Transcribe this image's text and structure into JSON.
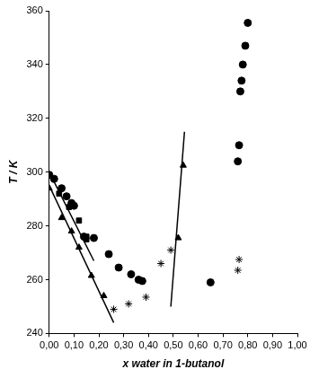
{
  "chart_data": {
    "type": "scatter",
    "x_label": "x water in 1-butanol",
    "y_label": "T / K",
    "xlim": [
      0,
      1
    ],
    "xticks": [
      {
        "value": 0,
        "label": "0,00"
      },
      {
        "value": 0.1,
        "label": "0,10"
      },
      {
        "value": 0.2,
        "label": "0,20"
      },
      {
        "value": 0.3,
        "label": "0,30"
      },
      {
        "value": 0.4,
        "label": "0,40"
      },
      {
        "value": 0.5,
        "label": "0,50"
      },
      {
        "value": 0.6,
        "label": "0,60"
      },
      {
        "value": 0.7,
        "label": "0,70"
      },
      {
        "value": 0.8,
        "label": "0,80"
      },
      {
        "value": 0.9,
        "label": "0,90"
      },
      {
        "value": 1,
        "label": "1,00"
      }
    ],
    "ylim": [
      240,
      360
    ],
    "yticks": [
      240,
      260,
      280,
      300,
      320,
      340,
      360
    ],
    "grid": false,
    "series": [
      {
        "type": "scatter",
        "marker": "circle",
        "color": "#000000",
        "x": [
          0.0,
          0.02,
          0.05,
          0.07,
          0.09,
          0.1,
          0.14,
          0.18,
          0.24,
          0.28,
          0.33,
          0.36,
          0.375,
          0.65,
          0.76,
          0.765,
          0.77,
          0.775,
          0.78,
          0.79,
          0.8
        ],
        "values": [
          299,
          297.5,
          294,
          291,
          288.5,
          287.5,
          276,
          275.5,
          269.5,
          264.5,
          262,
          260,
          259.5,
          259,
          304,
          310,
          330,
          334,
          340,
          347,
          355.5
        ]
      },
      {
        "type": "scatter",
        "marker": "square",
        "color": "#000000",
        "x": [
          0.0,
          0.04,
          0.08,
          0.12,
          0.15,
          0.15
        ],
        "values": [
          299,
          292,
          287,
          282,
          276,
          275
        ]
      },
      {
        "type": "scatter",
        "marker": "triangle",
        "color": "#000000",
        "x": [
          0.0,
          0.05,
          0.09,
          0.12,
          0.17,
          0.22,
          0.52,
          0.54
        ],
        "values": [
          294,
          283,
          278,
          272,
          261.5,
          254,
          275.5,
          302.5
        ]
      },
      {
        "type": "scatter",
        "marker": "star",
        "color": "#000000",
        "x": [
          0.26,
          0.32,
          0.39,
          0.45,
          0.49,
          0.76,
          0.765
        ],
        "values": [
          249,
          251,
          253.5,
          266,
          271,
          263.5,
          267.5
        ]
      },
      {
        "type": "line",
        "line_style": "solid",
        "color": "#000000",
        "x": [
          0.0,
          0.26
        ],
        "values": [
          295,
          244
        ]
      },
      {
        "type": "line",
        "line_style": "solid",
        "color": "#000000",
        "x": [
          0.0,
          0.18
        ],
        "values": [
          300,
          267
        ]
      },
      {
        "type": "line",
        "line_style": "solid",
        "color": "#000000",
        "x": [
          0.49,
          0.545
        ],
        "values": [
          250,
          315
        ]
      }
    ]
  }
}
